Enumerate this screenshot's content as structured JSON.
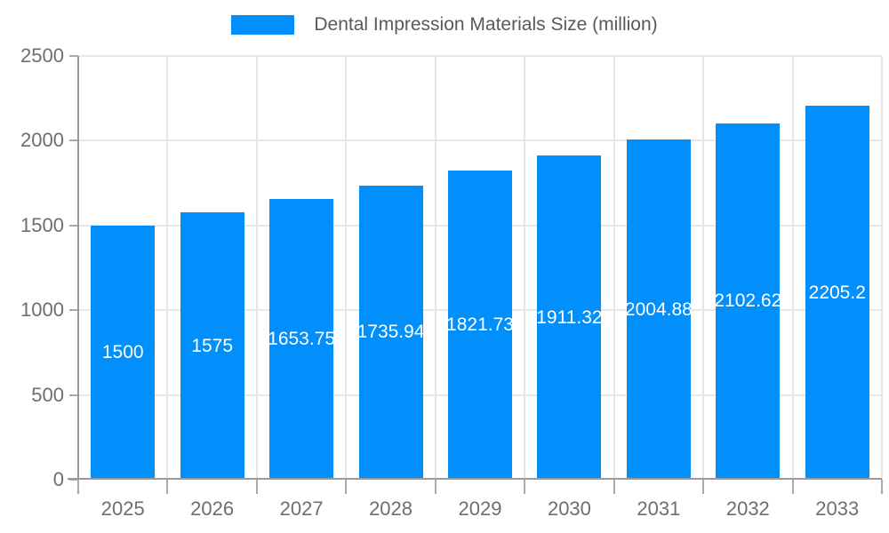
{
  "legend": {
    "label": "Dental Impression Materials Size (million)",
    "swatch_color": "#008FFB"
  },
  "chart_data": {
    "type": "bar",
    "title": "Dental Impression Materials Size (million)",
    "categories": [
      "2025",
      "2026",
      "2027",
      "2028",
      "2029",
      "2030",
      "2031",
      "2032",
      "2033"
    ],
    "series": [
      {
        "name": "Dental Impression Materials Size (million)",
        "values": [
          1500,
          1575,
          1653.75,
          1735.94,
          1821.73,
          1911.32,
          2004.88,
          2102.62,
          2205.2
        ]
      }
    ],
    "value_labels": [
      "1500",
      "1575",
      "1653.75",
      "1735.94",
      "1821.73",
      "1911.32",
      "2004.88",
      "2102.62",
      "2205.2"
    ],
    "xlabel": "",
    "ylabel": "",
    "ylim": [
      0,
      2500
    ],
    "yticks": [
      0,
      500,
      1000,
      1500,
      2000,
      2500
    ],
    "grid": true,
    "legend_position": "top",
    "colors": {
      "bar": "#008FFB",
      "gridline": "#e7e7e7",
      "axis_line": "#999999",
      "tick": "#aaaaaa",
      "axis_label_text": "#6e6e6e",
      "legend_text": "#595959",
      "value_label_text": "#ffffff",
      "background": "#ffffff"
    }
  }
}
